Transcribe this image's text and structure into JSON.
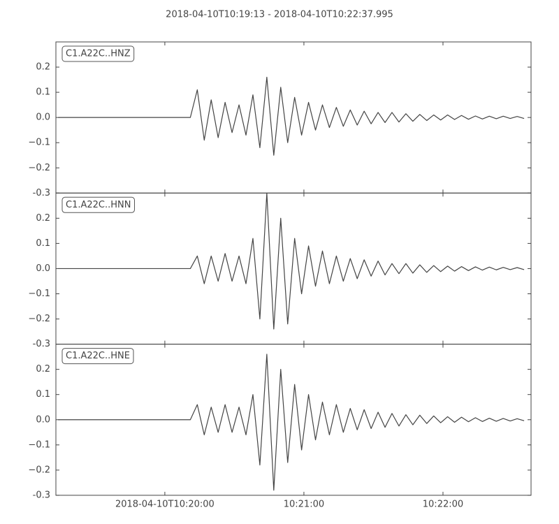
{
  "title": "2018-04-10T10:19:13  -  2018-04-10T10:22:37.995",
  "chart_data": [
    {
      "type": "line",
      "x": [
        "2018-04-10T10:19:14",
        "2018-04-10T10:19:17",
        "2018-04-10T10:19:20",
        "2018-04-10T10:19:23",
        "2018-04-10T10:19:26",
        "2018-04-10T10:19:29",
        "2018-04-10T10:19:32",
        "2018-04-10T10:19:35",
        "2018-04-10T10:19:38",
        "2018-04-10T10:19:41",
        "2018-04-10T10:19:44",
        "2018-04-10T10:19:47",
        "2018-04-10T10:19:50",
        "2018-04-10T10:19:53",
        "2018-04-10T10:19:56",
        "2018-04-10T10:19:59",
        "2018-04-10T10:20:02",
        "2018-04-10T10:20:05",
        "2018-04-10T10:20:08",
        "2018-04-10T10:20:11",
        "2018-04-10T10:20:14",
        "2018-04-10T10:20:17",
        "2018-04-10T10:20:20",
        "2018-04-10T10:20:23",
        "2018-04-10T10:20:26",
        "2018-04-10T10:20:29",
        "2018-04-10T10:20:32",
        "2018-04-10T10:20:35",
        "2018-04-10T10:20:38",
        "2018-04-10T10:20:41",
        "2018-04-10T10:20:44",
        "2018-04-10T10:20:47",
        "2018-04-10T10:20:50",
        "2018-04-10T10:20:53",
        "2018-04-10T10:20:56",
        "2018-04-10T10:20:59",
        "2018-04-10T10:21:02",
        "2018-04-10T10:21:05",
        "2018-04-10T10:21:08",
        "2018-04-10T10:21:11",
        "2018-04-10T10:21:14",
        "2018-04-10T10:21:17",
        "2018-04-10T10:21:20",
        "2018-04-10T10:21:23",
        "2018-04-10T10:21:26",
        "2018-04-10T10:21:29",
        "2018-04-10T10:21:32",
        "2018-04-10T10:21:35",
        "2018-04-10T10:21:38",
        "2018-04-10T10:21:41",
        "2018-04-10T10:21:44",
        "2018-04-10T10:21:47",
        "2018-04-10T10:21:50",
        "2018-04-10T10:21:53",
        "2018-04-10T10:21:56",
        "2018-04-10T10:21:59",
        "2018-04-10T10:22:02",
        "2018-04-10T10:22:05",
        "2018-04-10T10:22:08",
        "2018-04-10T10:22:11",
        "2018-04-10T10:22:14",
        "2018-04-10T10:22:17",
        "2018-04-10T10:22:20",
        "2018-04-10T10:22:23",
        "2018-04-10T10:22:26",
        "2018-04-10T10:22:29",
        "2018-04-10T10:22:32",
        "2018-04-10T10:22:35"
      ],
      "series": [
        {
          "name": "C1.A22C..HNZ",
          "color": "#444444",
          "values": [
            0,
            0,
            0,
            0,
            0,
            0,
            0,
            0,
            0,
            0,
            0,
            0,
            0,
            0,
            0,
            0,
            0,
            0,
            0,
            0,
            0.11,
            -0.09,
            0.07,
            -0.08,
            0.06,
            -0.06,
            0.05,
            -0.07,
            0.09,
            -0.12,
            0.16,
            -0.15,
            0.12,
            -0.1,
            0.08,
            -0.07,
            0.06,
            -0.05,
            0.05,
            -0.04,
            0.04,
            -0.035,
            0.03,
            -0.03,
            0.025,
            -0.025,
            0.02,
            -0.02,
            0.02,
            -0.018,
            0.015,
            -0.015,
            0.012,
            -0.012,
            0.01,
            -0.01,
            0.01,
            -0.008,
            0.008,
            -0.007,
            0.006,
            -0.006,
            0.005,
            -0.005,
            0.005,
            -0.004,
            0.004,
            -0.004
          ]
        }
      ],
      "xlim": [
        "2018-04-10T10:19:13",
        "2018-04-10T10:22:37.995"
      ],
      "ylim": [
        -0.3,
        0.3
      ],
      "yticks": [
        -0.3,
        {
          "value": -0.2,
          "label": "−0.2"
        },
        {
          "value": -0.1,
          "label": "−0.1"
        },
        {
          "value": 0,
          "label": "0.0"
        },
        0.1,
        0.2
      ]
    },
    {
      "type": "line",
      "x": [
        "2018-04-10T10:19:14",
        "2018-04-10T10:19:17",
        "2018-04-10T10:19:20",
        "2018-04-10T10:19:23",
        "2018-04-10T10:19:26",
        "2018-04-10T10:19:29",
        "2018-04-10T10:19:32",
        "2018-04-10T10:19:35",
        "2018-04-10T10:19:38",
        "2018-04-10T10:19:41",
        "2018-04-10T10:19:44",
        "2018-04-10T10:19:47",
        "2018-04-10T10:19:50",
        "2018-04-10T10:19:53",
        "2018-04-10T10:19:56",
        "2018-04-10T10:19:59",
        "2018-04-10T10:20:02",
        "2018-04-10T10:20:05",
        "2018-04-10T10:20:08",
        "2018-04-10T10:20:11",
        "2018-04-10T10:20:14",
        "2018-04-10T10:20:17",
        "2018-04-10T10:20:20",
        "2018-04-10T10:20:23",
        "2018-04-10T10:20:26",
        "2018-04-10T10:20:29",
        "2018-04-10T10:20:32",
        "2018-04-10T10:20:35",
        "2018-04-10T10:20:38",
        "2018-04-10T10:20:41",
        "2018-04-10T10:20:44",
        "2018-04-10T10:20:47",
        "2018-04-10T10:20:50",
        "2018-04-10T10:20:53",
        "2018-04-10T10:20:56",
        "2018-04-10T10:20:59",
        "2018-04-10T10:21:02",
        "2018-04-10T10:21:05",
        "2018-04-10T10:21:08",
        "2018-04-10T10:21:11",
        "2018-04-10T10:21:14",
        "2018-04-10T10:21:17",
        "2018-04-10T10:21:20",
        "2018-04-10T10:21:23",
        "2018-04-10T10:21:26",
        "2018-04-10T10:21:29",
        "2018-04-10T10:21:32",
        "2018-04-10T10:21:35",
        "2018-04-10T10:21:38",
        "2018-04-10T10:21:41",
        "2018-04-10T10:21:44",
        "2018-04-10T10:21:47",
        "2018-04-10T10:21:50",
        "2018-04-10T10:21:53",
        "2018-04-10T10:21:56",
        "2018-04-10T10:21:59",
        "2018-04-10T10:22:02",
        "2018-04-10T10:22:05",
        "2018-04-10T10:22:08",
        "2018-04-10T10:22:11",
        "2018-04-10T10:22:14",
        "2018-04-10T10:22:17",
        "2018-04-10T10:22:20",
        "2018-04-10T10:22:23",
        "2018-04-10T10:22:26",
        "2018-04-10T10:22:29",
        "2018-04-10T10:22:32",
        "2018-04-10T10:22:35"
      ],
      "series": [
        {
          "name": "C1.A22C..HNN",
          "color": "#444444",
          "values": [
            0,
            0,
            0,
            0,
            0,
            0,
            0,
            0,
            0,
            0,
            0,
            0,
            0,
            0,
            0,
            0,
            0,
            0,
            0,
            0,
            0.05,
            -0.06,
            0.05,
            -0.05,
            0.06,
            -0.05,
            0.05,
            -0.06,
            0.12,
            -0.2,
            0.3,
            -0.24,
            0.2,
            -0.22,
            0.12,
            -0.1,
            0.09,
            -0.07,
            0.07,
            -0.06,
            0.05,
            -0.05,
            0.04,
            -0.04,
            0.035,
            -0.03,
            0.03,
            -0.025,
            0.02,
            -0.02,
            0.02,
            -0.018,
            0.015,
            -0.015,
            0.012,
            -0.012,
            0.01,
            -0.01,
            0.008,
            -0.008,
            0.007,
            -0.006,
            0.006,
            -0.005,
            0.005,
            -0.004,
            0.004,
            -0.004
          ]
        }
      ],
      "xlim": [
        "2018-04-10T10:19:13",
        "2018-04-10T10:22:37.995"
      ],
      "ylim": [
        -0.3,
        0.3
      ],
      "yticks": [
        -0.3,
        {
          "value": -0.2,
          "label": "−0.2"
        },
        {
          "value": -0.1,
          "label": "−0.1"
        },
        {
          "value": 0,
          "label": "0.0"
        },
        0.1,
        0.2
      ]
    },
    {
      "type": "line",
      "x": [
        "2018-04-10T10:19:14",
        "2018-04-10T10:19:17",
        "2018-04-10T10:19:20",
        "2018-04-10T10:19:23",
        "2018-04-10T10:19:26",
        "2018-04-10T10:19:29",
        "2018-04-10T10:19:32",
        "2018-04-10T10:19:35",
        "2018-04-10T10:19:38",
        "2018-04-10T10:19:41",
        "2018-04-10T10:19:44",
        "2018-04-10T10:19:47",
        "2018-04-10T10:19:50",
        "2018-04-10T10:19:53",
        "2018-04-10T10:19:56",
        "2018-04-10T10:19:59",
        "2018-04-10T10:20:02",
        "2018-04-10T10:20:05",
        "2018-04-10T10:20:08",
        "2018-04-10T10:20:11",
        "2018-04-10T10:20:14",
        "2018-04-10T10:20:17",
        "2018-04-10T10:20:20",
        "2018-04-10T10:20:23",
        "2018-04-10T10:20:26",
        "2018-04-10T10:20:29",
        "2018-04-10T10:20:32",
        "2018-04-10T10:20:35",
        "2018-04-10T10:20:38",
        "2018-04-10T10:20:41",
        "2018-04-10T10:20:44",
        "2018-04-10T10:20:47",
        "2018-04-10T10:20:50",
        "2018-04-10T10:20:53",
        "2018-04-10T10:20:56",
        "2018-04-10T10:20:59",
        "2018-04-10T10:21:02",
        "2018-04-10T10:21:05",
        "2018-04-10T10:21:08",
        "2018-04-10T10:21:11",
        "2018-04-10T10:21:14",
        "2018-04-10T10:21:17",
        "2018-04-10T10:21:20",
        "2018-04-10T10:21:23",
        "2018-04-10T10:21:26",
        "2018-04-10T10:21:29",
        "2018-04-10T10:21:32",
        "2018-04-10T10:21:35",
        "2018-04-10T10:21:38",
        "2018-04-10T10:21:41",
        "2018-04-10T10:21:44",
        "2018-04-10T10:21:47",
        "2018-04-10T10:21:50",
        "2018-04-10T10:21:53",
        "2018-04-10T10:21:56",
        "2018-04-10T10:21:59",
        "2018-04-10T10:22:02",
        "2018-04-10T10:22:05",
        "2018-04-10T10:22:08",
        "2018-04-10T10:22:11",
        "2018-04-10T10:22:14",
        "2018-04-10T10:22:17",
        "2018-04-10T10:22:20",
        "2018-04-10T10:22:23",
        "2018-04-10T10:22:26",
        "2018-04-10T10:22:29",
        "2018-04-10T10:22:32",
        "2018-04-10T10:22:35"
      ],
      "series": [
        {
          "name": "C1.A22C..HNE",
          "color": "#444444",
          "values": [
            0,
            0,
            0,
            0,
            0,
            0,
            0,
            0,
            0,
            0,
            0,
            0,
            0,
            0,
            0,
            0,
            0,
            0,
            0,
            0,
            0.06,
            -0.06,
            0.05,
            -0.05,
            0.06,
            -0.05,
            0.05,
            -0.06,
            0.1,
            -0.18,
            0.26,
            -0.28,
            0.2,
            -0.17,
            0.14,
            -0.12,
            0.1,
            -0.08,
            0.07,
            -0.06,
            0.06,
            -0.05,
            0.045,
            -0.04,
            0.04,
            -0.035,
            0.03,
            -0.03,
            0.025,
            -0.025,
            0.02,
            -0.02,
            0.018,
            -0.015,
            0.015,
            -0.012,
            0.012,
            -0.01,
            0.01,
            -0.008,
            0.008,
            -0.007,
            0.006,
            -0.006,
            0.005,
            -0.005,
            0.004,
            -0.004
          ]
        }
      ],
      "xlim": [
        "2018-04-10T10:19:13",
        "2018-04-10T10:22:37.995"
      ],
      "xticks": [
        "2018-04-10T10:20:00",
        {
          "value": "2018-04-10T10:21:00",
          "label": "10:21:00"
        },
        {
          "value": "2018-04-10T10:22:00",
          "label": "10:22:00"
        }
      ],
      "ylim": [
        -0.3,
        0.3
      ],
      "yticks": [
        -0.3,
        {
          "value": -0.2,
          "label": "−0.2"
        },
        {
          "value": -0.1,
          "label": "−0.1"
        },
        {
          "value": 0,
          "label": "0.0"
        },
        0.1,
        0.2
      ]
    }
  ]
}
